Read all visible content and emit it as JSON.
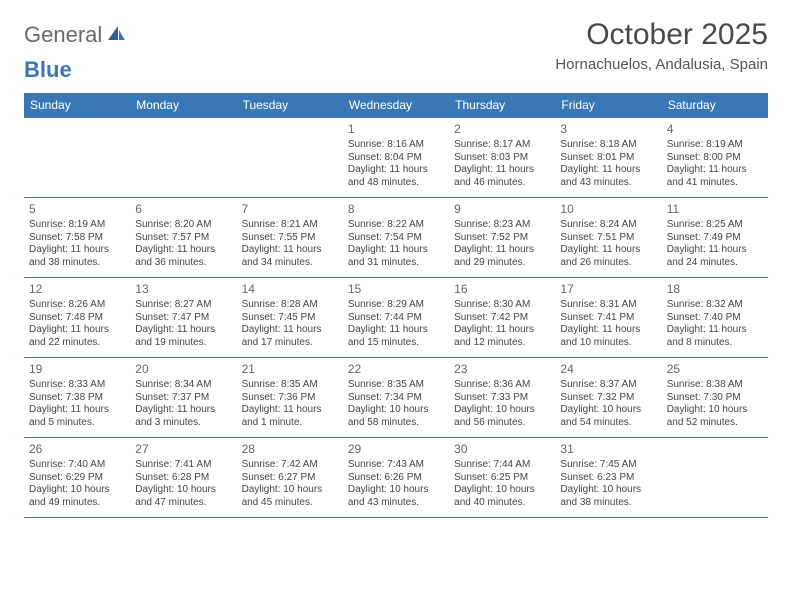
{
  "brand": {
    "part1": "General",
    "part2": "Blue"
  },
  "title": "October 2025",
  "location": "Hornachuelos, Andalusia, Spain",
  "colors": {
    "header_bg": "#3a78b5",
    "header_text": "#ffffff",
    "rule": "#3a78b5",
    "text": "#444444",
    "title_color": "#4a4a4a"
  },
  "layout": {
    "columns": 7,
    "rows": 5,
    "font_family": "Arial, Helvetica, sans-serif",
    "daynum_fontsize": 12,
    "body_fontsize": 10,
    "dow_fontsize": 12,
    "title_fontsize": 30,
    "subtitle_fontsize": 15
  },
  "days_of_week": [
    "Sunday",
    "Monday",
    "Tuesday",
    "Wednesday",
    "Thursday",
    "Friday",
    "Saturday"
  ],
  "weeks": [
    [
      {
        "n": "",
        "sunrise": "",
        "sunset": "",
        "daylight": ""
      },
      {
        "n": "",
        "sunrise": "",
        "sunset": "",
        "daylight": ""
      },
      {
        "n": "",
        "sunrise": "",
        "sunset": "",
        "daylight": ""
      },
      {
        "n": "1",
        "sunrise": "Sunrise: 8:16 AM",
        "sunset": "Sunset: 8:04 PM",
        "daylight": "Daylight: 11 hours and 48 minutes."
      },
      {
        "n": "2",
        "sunrise": "Sunrise: 8:17 AM",
        "sunset": "Sunset: 8:03 PM",
        "daylight": "Daylight: 11 hours and 46 minutes."
      },
      {
        "n": "3",
        "sunrise": "Sunrise: 8:18 AM",
        "sunset": "Sunset: 8:01 PM",
        "daylight": "Daylight: 11 hours and 43 minutes."
      },
      {
        "n": "4",
        "sunrise": "Sunrise: 8:19 AM",
        "sunset": "Sunset: 8:00 PM",
        "daylight": "Daylight: 11 hours and 41 minutes."
      }
    ],
    [
      {
        "n": "5",
        "sunrise": "Sunrise: 8:19 AM",
        "sunset": "Sunset: 7:58 PM",
        "daylight": "Daylight: 11 hours and 38 minutes."
      },
      {
        "n": "6",
        "sunrise": "Sunrise: 8:20 AM",
        "sunset": "Sunset: 7:57 PM",
        "daylight": "Daylight: 11 hours and 36 minutes."
      },
      {
        "n": "7",
        "sunrise": "Sunrise: 8:21 AM",
        "sunset": "Sunset: 7:55 PM",
        "daylight": "Daylight: 11 hours and 34 minutes."
      },
      {
        "n": "8",
        "sunrise": "Sunrise: 8:22 AM",
        "sunset": "Sunset: 7:54 PM",
        "daylight": "Daylight: 11 hours and 31 minutes."
      },
      {
        "n": "9",
        "sunrise": "Sunrise: 8:23 AM",
        "sunset": "Sunset: 7:52 PM",
        "daylight": "Daylight: 11 hours and 29 minutes."
      },
      {
        "n": "10",
        "sunrise": "Sunrise: 8:24 AM",
        "sunset": "Sunset: 7:51 PM",
        "daylight": "Daylight: 11 hours and 26 minutes."
      },
      {
        "n": "11",
        "sunrise": "Sunrise: 8:25 AM",
        "sunset": "Sunset: 7:49 PM",
        "daylight": "Daylight: 11 hours and 24 minutes."
      }
    ],
    [
      {
        "n": "12",
        "sunrise": "Sunrise: 8:26 AM",
        "sunset": "Sunset: 7:48 PM",
        "daylight": "Daylight: 11 hours and 22 minutes."
      },
      {
        "n": "13",
        "sunrise": "Sunrise: 8:27 AM",
        "sunset": "Sunset: 7:47 PM",
        "daylight": "Daylight: 11 hours and 19 minutes."
      },
      {
        "n": "14",
        "sunrise": "Sunrise: 8:28 AM",
        "sunset": "Sunset: 7:45 PM",
        "daylight": "Daylight: 11 hours and 17 minutes."
      },
      {
        "n": "15",
        "sunrise": "Sunrise: 8:29 AM",
        "sunset": "Sunset: 7:44 PM",
        "daylight": "Daylight: 11 hours and 15 minutes."
      },
      {
        "n": "16",
        "sunrise": "Sunrise: 8:30 AM",
        "sunset": "Sunset: 7:42 PM",
        "daylight": "Daylight: 11 hours and 12 minutes."
      },
      {
        "n": "17",
        "sunrise": "Sunrise: 8:31 AM",
        "sunset": "Sunset: 7:41 PM",
        "daylight": "Daylight: 11 hours and 10 minutes."
      },
      {
        "n": "18",
        "sunrise": "Sunrise: 8:32 AM",
        "sunset": "Sunset: 7:40 PM",
        "daylight": "Daylight: 11 hours and 8 minutes."
      }
    ],
    [
      {
        "n": "19",
        "sunrise": "Sunrise: 8:33 AM",
        "sunset": "Sunset: 7:38 PM",
        "daylight": "Daylight: 11 hours and 5 minutes."
      },
      {
        "n": "20",
        "sunrise": "Sunrise: 8:34 AM",
        "sunset": "Sunset: 7:37 PM",
        "daylight": "Daylight: 11 hours and 3 minutes."
      },
      {
        "n": "21",
        "sunrise": "Sunrise: 8:35 AM",
        "sunset": "Sunset: 7:36 PM",
        "daylight": "Daylight: 11 hours and 1 minute."
      },
      {
        "n": "22",
        "sunrise": "Sunrise: 8:35 AM",
        "sunset": "Sunset: 7:34 PM",
        "daylight": "Daylight: 10 hours and 58 minutes."
      },
      {
        "n": "23",
        "sunrise": "Sunrise: 8:36 AM",
        "sunset": "Sunset: 7:33 PM",
        "daylight": "Daylight: 10 hours and 56 minutes."
      },
      {
        "n": "24",
        "sunrise": "Sunrise: 8:37 AM",
        "sunset": "Sunset: 7:32 PM",
        "daylight": "Daylight: 10 hours and 54 minutes."
      },
      {
        "n": "25",
        "sunrise": "Sunrise: 8:38 AM",
        "sunset": "Sunset: 7:30 PM",
        "daylight": "Daylight: 10 hours and 52 minutes."
      }
    ],
    [
      {
        "n": "26",
        "sunrise": "Sunrise: 7:40 AM",
        "sunset": "Sunset: 6:29 PM",
        "daylight": "Daylight: 10 hours and 49 minutes."
      },
      {
        "n": "27",
        "sunrise": "Sunrise: 7:41 AM",
        "sunset": "Sunset: 6:28 PM",
        "daylight": "Daylight: 10 hours and 47 minutes."
      },
      {
        "n": "28",
        "sunrise": "Sunrise: 7:42 AM",
        "sunset": "Sunset: 6:27 PM",
        "daylight": "Daylight: 10 hours and 45 minutes."
      },
      {
        "n": "29",
        "sunrise": "Sunrise: 7:43 AM",
        "sunset": "Sunset: 6:26 PM",
        "daylight": "Daylight: 10 hours and 43 minutes."
      },
      {
        "n": "30",
        "sunrise": "Sunrise: 7:44 AM",
        "sunset": "Sunset: 6:25 PM",
        "daylight": "Daylight: 10 hours and 40 minutes."
      },
      {
        "n": "31",
        "sunrise": "Sunrise: 7:45 AM",
        "sunset": "Sunset: 6:23 PM",
        "daylight": "Daylight: 10 hours and 38 minutes."
      },
      {
        "n": "",
        "sunrise": "",
        "sunset": "",
        "daylight": ""
      }
    ]
  ]
}
